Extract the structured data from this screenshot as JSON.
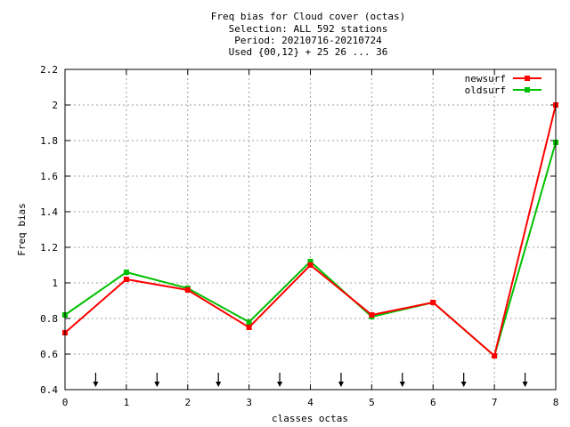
{
  "chart_data": {
    "type": "line",
    "title_lines": [
      "Freq bias  for Cloud cover (octas)",
      "Selection: ALL    592 stations",
      "Period: 20210716-20210724",
      "Used {00,12} + 25 26 ... 36"
    ],
    "xlabel": "classes octas",
    "ylabel": "Freq bias",
    "xlim": [
      0,
      8
    ],
    "ylim": [
      0.4,
      2.2
    ],
    "x_ticks": [
      "0",
      "1",
      "2",
      "3",
      "4",
      "5",
      "6",
      "7",
      "8"
    ],
    "y_ticks": [
      "0.4",
      "0.6",
      "0.8",
      "1",
      "1.2",
      "1.4",
      "1.6",
      "1.8",
      "2",
      "2.2"
    ],
    "grid": true,
    "legend_position": "top-right",
    "x": [
      0,
      1,
      2,
      3,
      4,
      5,
      6,
      7,
      8
    ],
    "series": [
      {
        "name": "newsurf",
        "color": "#ff0000",
        "values": [
          0.72,
          1.02,
          0.96,
          0.75,
          1.1,
          0.82,
          0.89,
          0.59,
          2.0
        ]
      },
      {
        "name": "oldsurf",
        "color": "#00c000",
        "values": [
          0.82,
          1.06,
          0.97,
          0.78,
          1.12,
          0.81,
          0.89,
          0.59,
          1.79
        ]
      }
    ],
    "arrow_markers_x": [
      0.5,
      1.5,
      2.5,
      3.5,
      4.5,
      5.5,
      6.5,
      7.5
    ]
  }
}
